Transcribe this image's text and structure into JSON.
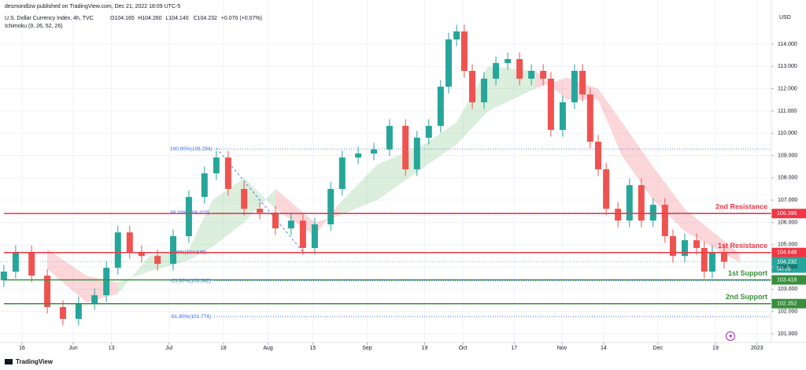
{
  "header": {
    "publisher": "desmondlzw published on TradingView.com, Dec 21, 2022 18:09 UTC-5",
    "symbol": "U.S. Dollar Currency Index, 4h, TVC",
    "ohlc": [
      "O104.165",
      "H104.260",
      "L104.140",
      "C104.232",
      "+0.070 (+0.07%)"
    ],
    "indicator": "Ichimoku (9, 26, 52, 26)",
    "currency": "USD",
    "countdown": "50:18"
  },
  "footer": {
    "brand": "TradingView"
  },
  "chart_data": {
    "type": "candlestick",
    "up_color": "#26a69a",
    "down_color": "#ef5350",
    "grid": true,
    "xlim": [
      8.1,
      249.5
    ],
    "ylim": [
      100.61,
      115.98
    ],
    "xticks": [
      {
        "value": 15,
        "label": "16"
      },
      {
        "value": 31,
        "label": "Jun"
      },
      {
        "value": 43,
        "label": "13"
      },
      {
        "value": 61,
        "label": "Jul"
      },
      {
        "value": 78,
        "label": "18"
      },
      {
        "value": 92,
        "label": "Aug"
      },
      {
        "value": 106,
        "label": "15"
      },
      {
        "value": 123,
        "label": "Sep"
      },
      {
        "value": 141,
        "label": "19"
      },
      {
        "value": 153,
        "label": "Oct"
      },
      {
        "value": 169,
        "label": "17"
      },
      {
        "value": 184,
        "label": "Nov"
      },
      {
        "value": 197,
        "label": "14"
      },
      {
        "value": 214,
        "label": "Dec"
      },
      {
        "value": 232,
        "label": "19"
      },
      {
        "value": 245,
        "label": "2023"
      }
    ],
    "yticks": [
      {
        "value": 101,
        "label": "101.000"
      },
      {
        "value": 102,
        "label": "102.000"
      },
      {
        "value": 103,
        "label": "103.000"
      },
      {
        "value": 104,
        "label": "104.000"
      },
      {
        "value": 105,
        "label": "105.000"
      },
      {
        "value": 106,
        "label": "106.000"
      },
      {
        "value": 107,
        "label": "107.000"
      },
      {
        "value": 108,
        "label": "108.000"
      },
      {
        "value": 109,
        "label": "109.000"
      },
      {
        "value": 110,
        "label": "110.000"
      },
      {
        "value": 111,
        "label": "111.000"
      },
      {
        "value": 112,
        "label": "112.000"
      },
      {
        "value": 113,
        "label": "113.000"
      },
      {
        "value": 114,
        "label": "114.000"
      }
    ],
    "x": [
      9.3,
      13.0,
      18.0,
      22.9,
      27.8,
      32.7,
      37.7,
      41.4,
      45.0,
      48.7,
      52.4,
      57.4,
      62.3,
      67.2,
      72.1,
      75.8,
      79.5,
      84.5,
      89.4,
      94.3,
      99.2,
      102.9,
      106.6,
      111.6,
      115.2,
      120.2,
      125.1,
      130.0,
      135.0,
      138.6,
      142.3,
      146.0,
      148.5,
      151.0,
      153.4,
      155.9,
      159.6,
      163.3,
      167.0,
      170.7,
      174.4,
      178.1,
      180.5,
      184.2,
      187.9,
      190.4,
      192.8,
      195.3,
      197.8,
      201.5,
      205.1,
      208.8,
      212.5,
      216.2,
      218.7,
      222.4,
      226.1,
      228.5,
      231.0,
      234.7
    ],
    "open": [
      103.4,
      103.79,
      104.67,
      103.61,
      102.2,
      101.67,
      102.37,
      102.73,
      103.96,
      105.55,
      104.67,
      104.49,
      104.14,
      105.38,
      107.14,
      108.2,
      108.91,
      107.5,
      106.61,
      106.44,
      105.73,
      106.08,
      104.85,
      105.91,
      107.5,
      108.91,
      109.09,
      109.27,
      110.33,
      108.38,
      109.8,
      110.33,
      112.09,
      114.21,
      114.57,
      112.8,
      111.39,
      112.45,
      113.15,
      113.33,
      112.45,
      112.8,
      112.45,
      110.15,
      111.39,
      112.8,
      111.74,
      109.62,
      108.38,
      106.61,
      106.08,
      107.67,
      106.08,
      106.79,
      105.38,
      104.49,
      105.2,
      104.85,
      103.79,
      104.67
    ],
    "high": [
      104.09,
      104.97,
      104.97,
      103.91,
      102.5,
      102.67,
      103.03,
      104.26,
      105.85,
      105.85,
      104.97,
      104.79,
      105.68,
      107.44,
      108.5,
      109.21,
      109.21,
      107.8,
      106.91,
      106.74,
      106.38,
      106.38,
      106.21,
      107.8,
      109.21,
      109.39,
      109.57,
      110.63,
      110.63,
      110.1,
      110.63,
      112.39,
      114.51,
      114.87,
      114.87,
      113.1,
      112.75,
      113.45,
      113.63,
      113.63,
      113.1,
      113.1,
      112.75,
      111.69,
      113.1,
      113.1,
      112.04,
      109.92,
      108.68,
      106.91,
      107.97,
      107.97,
      107.09,
      107.09,
      105.68,
      105.5,
      105.5,
      105.15,
      104.97,
      104.97
    ],
    "low": [
      103.1,
      103.49,
      103.31,
      101.9,
      101.37,
      101.37,
      102.07,
      102.43,
      103.66,
      104.37,
      104.19,
      103.84,
      103.84,
      105.08,
      106.84,
      107.9,
      107.2,
      106.31,
      106.14,
      105.43,
      105.43,
      104.55,
      104.55,
      105.61,
      107.2,
      108.61,
      108.79,
      108.97,
      108.08,
      108.08,
      109.5,
      110.03,
      111.79,
      113.91,
      112.5,
      111.09,
      111.09,
      112.15,
      112.85,
      112.15,
      112.15,
      112.15,
      109.85,
      109.85,
      111.09,
      111.44,
      109.32,
      108.08,
      106.31,
      105.78,
      105.78,
      105.78,
      105.78,
      105.08,
      104.19,
      104.19,
      104.55,
      103.49,
      103.49,
      103.93
    ],
    "close": [
      103.79,
      104.67,
      103.61,
      102.2,
      101.67,
      102.37,
      102.73,
      103.96,
      105.55,
      104.67,
      104.49,
      104.14,
      105.38,
      107.14,
      108.2,
      108.91,
      107.5,
      106.61,
      106.44,
      105.73,
      106.08,
      104.85,
      105.91,
      107.5,
      108.91,
      109.09,
      109.27,
      110.33,
      108.38,
      109.8,
      110.33,
      112.09,
      114.21,
      114.57,
      112.8,
      111.39,
      112.45,
      113.15,
      113.33,
      112.45,
      112.8,
      112.45,
      110.15,
      111.39,
      112.8,
      111.74,
      109.62,
      108.38,
      106.61,
      106.08,
      107.67,
      106.08,
      106.79,
      105.38,
      104.49,
      105.2,
      104.85,
      103.79,
      104.67,
      104.232
    ],
    "cloud": {
      "x": [
        22.9,
        35.2,
        45.0,
        54.9,
        67.2,
        74.6,
        84.5,
        94.3,
        106.6,
        114.0,
        126.2,
        141.0,
        151.0,
        160.9,
        175.6,
        185.4,
        195.3,
        202.7,
        212.5,
        222.4,
        239.6
      ],
      "span_a": [
        103.9,
        102.4,
        102.8,
        104.5,
        104.8,
        107.0,
        108.0,
        106.6,
        105.4,
        106.8,
        108.6,
        109.5,
        110.5,
        113.0,
        112.8,
        111.5,
        111.5,
        109.0,
        107.0,
        105.6,
        104.2
      ],
      "span_b": [
        104.8,
        103.6,
        103.3,
        103.8,
        104.3,
        104.9,
        106.0,
        107.5,
        106.0,
        106.3,
        107.0,
        108.5,
        109.5,
        111.0,
        112.0,
        112.5,
        112.0,
        110.5,
        108.5,
        106.6,
        104.6
      ],
      "up_color": "#4caf50",
      "down_color": "#f23645"
    },
    "levels": [
      {
        "label": "2nd Resistance",
        "value": 106.396,
        "color": "#f23645"
      },
      {
        "label": "1st Resistance",
        "value": 104.648,
        "color": "#f23645"
      },
      {
        "label": "1st Support",
        "value": 103.418,
        "color": "#388e3c"
      },
      {
        "label": "2nd Support",
        "value": 102.352,
        "color": "#388e3c"
      }
    ],
    "fib_levels": [
      {
        "label": "100.00%(109.294)",
        "value": 109.294
      },
      {
        "label": "38.20%(106.423)",
        "value": 106.423
      },
      {
        "label": "0.00%(104.646)",
        "value": 104.646
      },
      {
        "label": "-23.60%(103.382)",
        "value": 103.382
      },
      {
        "label": "-61.80%(101.774)",
        "value": 101.774
      }
    ],
    "fib_color": "#2962ff"
  }
}
